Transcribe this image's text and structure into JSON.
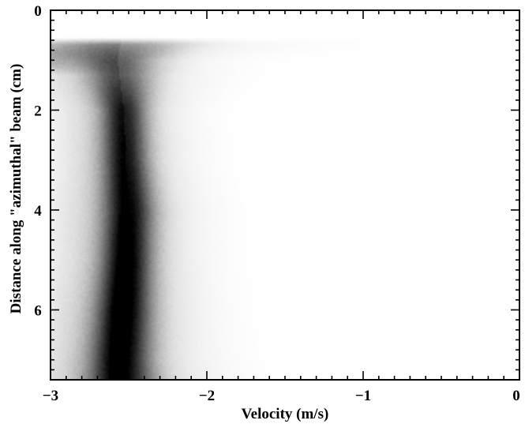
{
  "chart_data": {
    "type": "heatmap",
    "title": "",
    "xlabel": "Velocity (m/s)",
    "ylabel": "Distance along \"azimuthal\" beam (cm)",
    "xlim": [
      -3,
      0
    ],
    "ylim": [
      7.4,
      0
    ],
    "x_ticks": [
      -3,
      -2,
      -1,
      0
    ],
    "x_tick_labels": [
      "−3",
      "−2",
      "−1",
      "0"
    ],
    "y_ticks": [
      0,
      2,
      4,
      6
    ],
    "y_tick_labels": [
      "0",
      "2",
      "4",
      "6"
    ],
    "colormap": "white-to-black (grayscale, darker = higher density)",
    "grid": false,
    "legend": "none",
    "ridge": {
      "distance_cm": [
        0.6,
        1.0,
        1.5,
        2.0,
        3.0,
        4.0,
        5.0,
        6.0,
        7.0,
        7.4
      ],
      "peak_velocity_ms": [
        -2.55,
        -2.57,
        -2.55,
        -2.53,
        -2.52,
        -2.5,
        -2.51,
        -2.53,
        -2.55,
        -2.55
      ],
      "width_ms": [
        0.3,
        0.16,
        0.13,
        0.1,
        0.1,
        0.11,
        0.11,
        0.12,
        0.13,
        0.14
      ],
      "intensity": [
        0.3,
        0.45,
        0.6,
        0.75,
        0.8,
        0.85,
        0.9,
        0.92,
        0.9,
        0.88
      ]
    },
    "haze_band": {
      "distance_range_cm": [
        0.6,
        1.3
      ],
      "velocity_range_ms": [
        -3.0,
        -2.0
      ]
    }
  }
}
